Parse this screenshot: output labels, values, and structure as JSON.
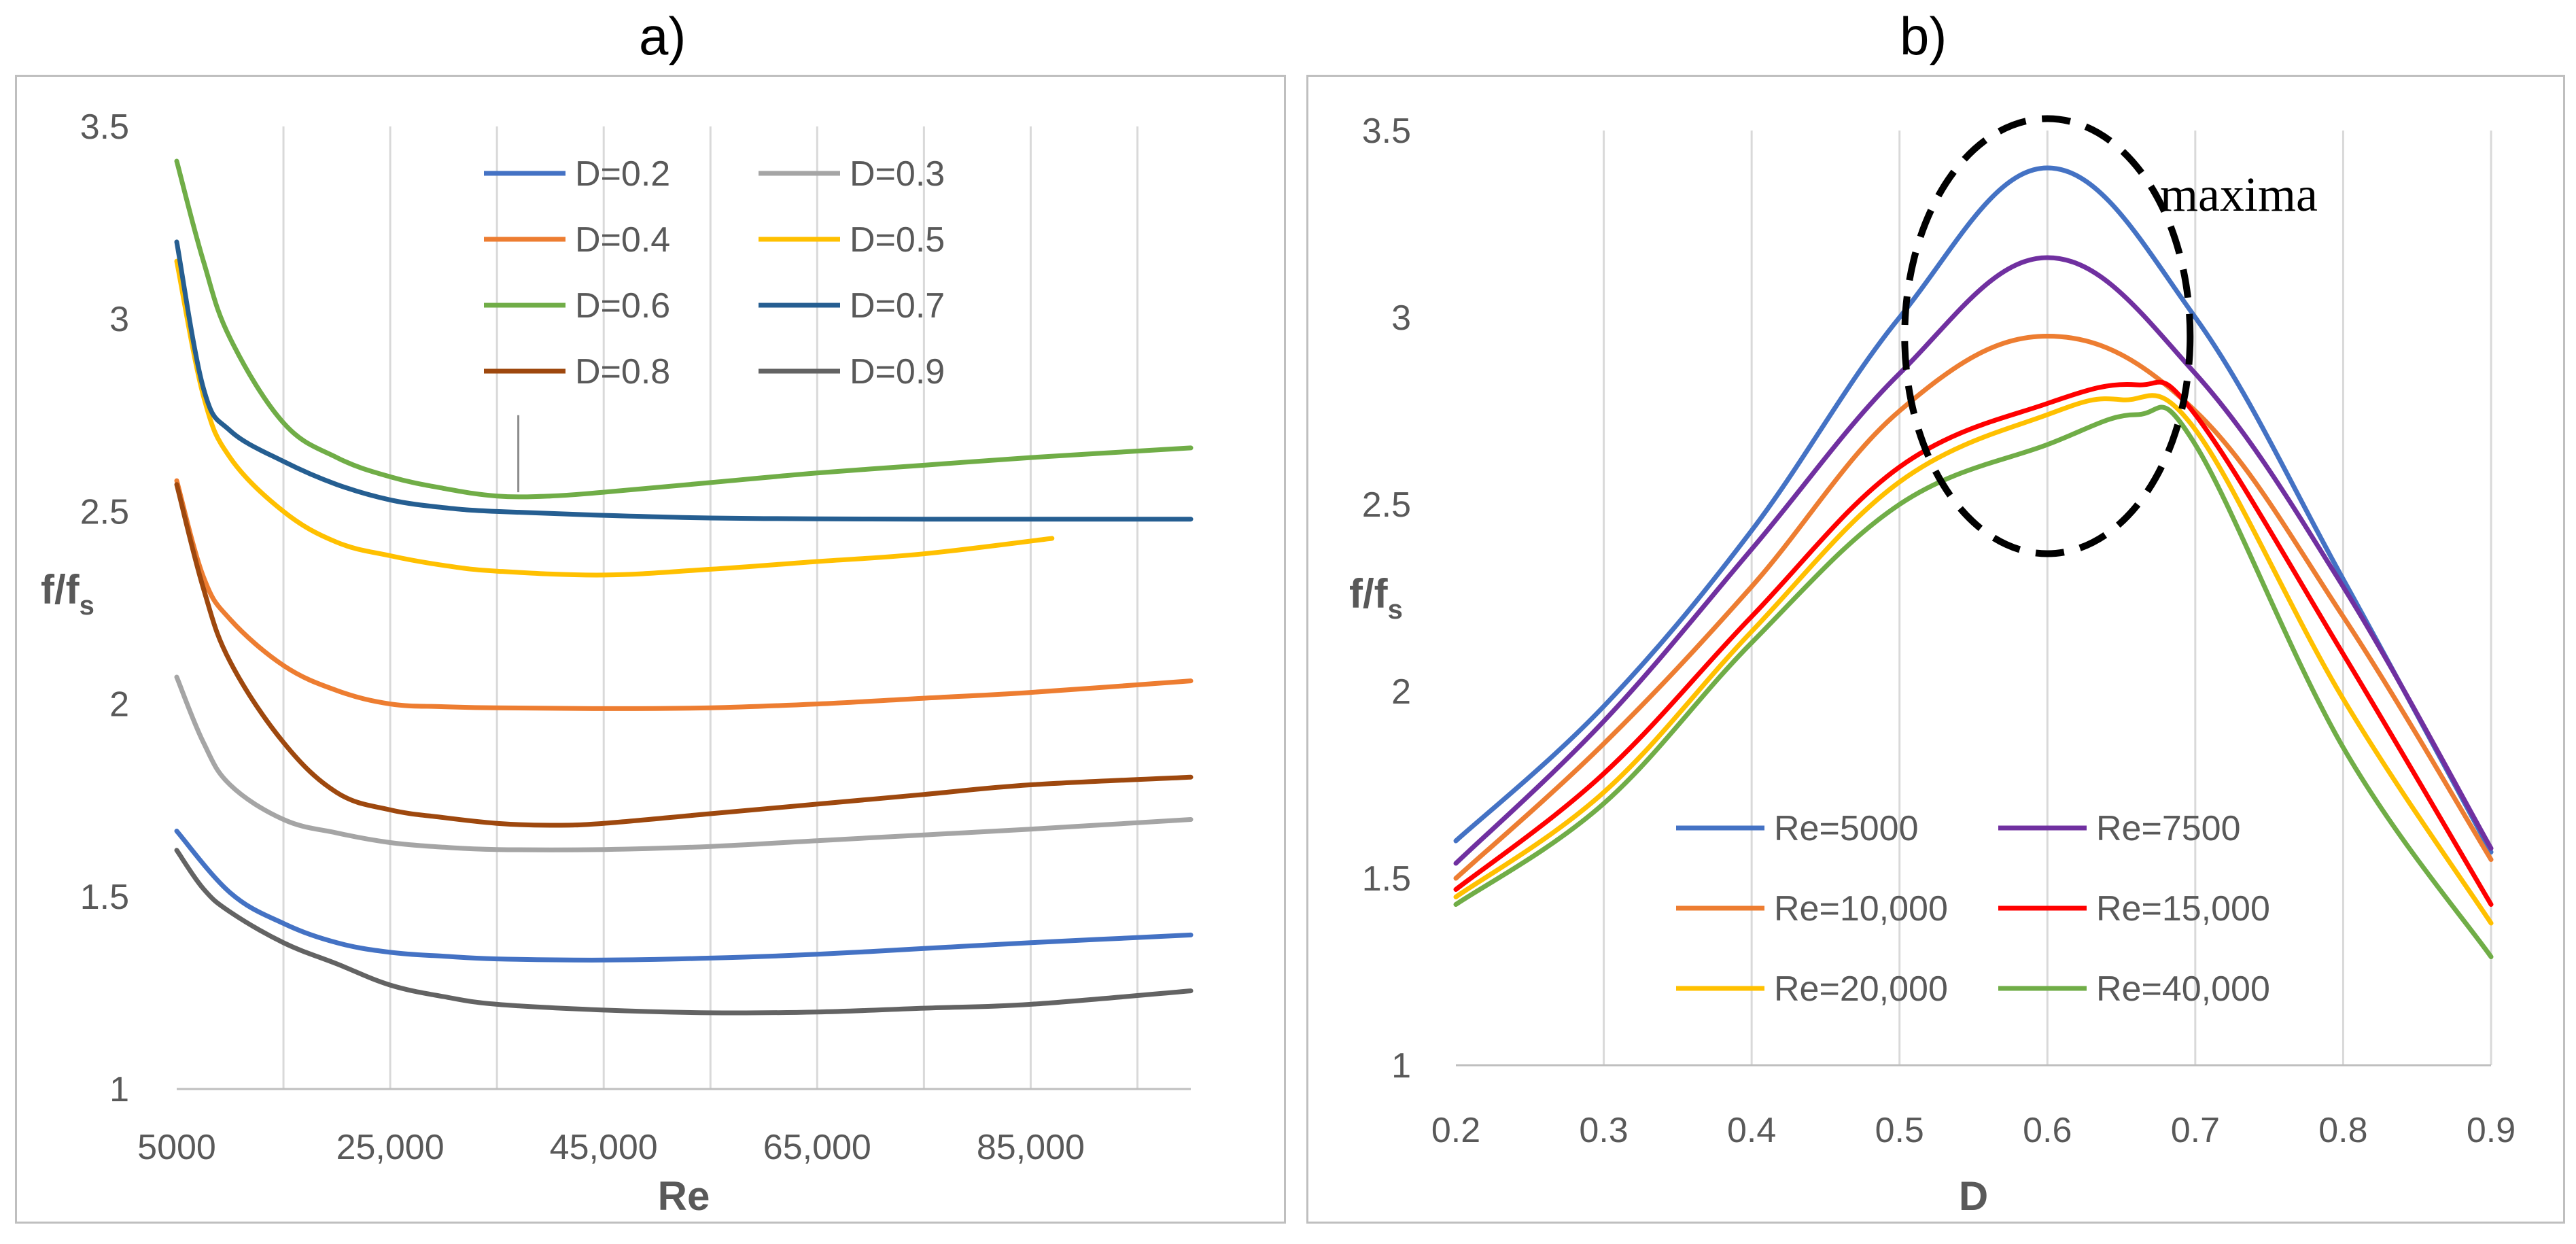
{
  "chart_data": [
    {
      "panel_label": "a)",
      "type": "line",
      "title": "",
      "xlabel": "Re",
      "ylabel_main": "f/f",
      "ylabel_sub": "s",
      "xlim": [
        5000,
        100000
      ],
      "ylim": [
        1,
        3.5
      ],
      "x_ticks": [
        5000,
        25000,
        45000,
        65000,
        85000
      ],
      "x_tick_labels": [
        "5000",
        "25,000",
        "45,000",
        "65,000",
        "85,000"
      ],
      "y_ticks": [
        1,
        1.5,
        2,
        2.5,
        3,
        3.5
      ],
      "y_tick_labels": [
        "1",
        "1.5",
        "2",
        "2.5",
        "3",
        "3.5"
      ],
      "grid": "vertical",
      "legend_position": "top-right",
      "series": [
        {
          "name": "D=0.2",
          "color": "#4472C4",
          "x": [
            5000,
            10000,
            15000,
            20000,
            25000,
            30000,
            35000,
            45000,
            55000,
            65000,
            75000,
            85000,
            100000
          ],
          "y": [
            1.67,
            1.51,
            1.43,
            1.38,
            1.355,
            1.345,
            1.338,
            1.335,
            1.34,
            1.35,
            1.365,
            1.38,
            1.4
          ]
        },
        {
          "name": "D=0.3",
          "color": "#A5A5A5",
          "x": [
            5000,
            7500,
            10000,
            15000,
            20000,
            25000,
            30000,
            35000,
            45000,
            55000,
            65000,
            75000,
            85000,
            100000
          ],
          "y": [
            2.07,
            1.9,
            1.79,
            1.7,
            1.665,
            1.64,
            1.628,
            1.622,
            1.622,
            1.63,
            1.645,
            1.66,
            1.675,
            1.7
          ]
        },
        {
          "name": "D=0.4",
          "color": "#ED7D31",
          "x": [
            5000,
            7500,
            10000,
            15000,
            20000,
            25000,
            30000,
            35000,
            45000,
            55000,
            65000,
            75000,
            85000,
            100000
          ],
          "y": [
            2.58,
            2.33,
            2.22,
            2.1,
            2.035,
            2.0,
            1.993,
            1.99,
            1.988,
            1.99,
            2.0,
            2.015,
            2.03,
            2.06
          ]
        },
        {
          "name": "D=0.5",
          "color": "#FFC000",
          "x": [
            5000,
            7500,
            10000,
            15000,
            20000,
            25000,
            30000,
            35000,
            45000,
            55000,
            65000,
            75000,
            87000
          ],
          "y": [
            3.15,
            2.8,
            2.64,
            2.5,
            2.42,
            2.385,
            2.36,
            2.345,
            2.335,
            2.35,
            2.37,
            2.39,
            2.43
          ]
        },
        {
          "name": "D=0.6",
          "color": "#70AD47",
          "x": [
            5000,
            7500,
            10000,
            15000,
            20000,
            25000,
            30000,
            35000,
            40000,
            45000,
            55000,
            65000,
            75000,
            85000,
            100000
          ],
          "y": [
            3.41,
            3.15,
            2.95,
            2.73,
            2.64,
            2.59,
            2.56,
            2.54,
            2.54,
            2.55,
            2.575,
            2.6,
            2.62,
            2.64,
            2.665
          ]
        },
        {
          "name": "D=0.7",
          "color": "#255E91",
          "x": [
            5000,
            7500,
            10000,
            15000,
            20000,
            25000,
            30000,
            35000,
            45000,
            55000,
            65000,
            75000,
            85000,
            100000
          ],
          "y": [
            3.2,
            2.82,
            2.71,
            2.63,
            2.57,
            2.53,
            2.51,
            2.5,
            2.49,
            2.483,
            2.481,
            2.48,
            2.48,
            2.48
          ]
        },
        {
          "name": "D=0.8",
          "color": "#9E480E",
          "x": [
            5000,
            7500,
            10000,
            15000,
            20000,
            25000,
            30000,
            35000,
            40000,
            45000,
            55000,
            65000,
            75000,
            85000,
            100000
          ],
          "y": [
            2.57,
            2.3,
            2.11,
            1.9,
            1.77,
            1.725,
            1.705,
            1.69,
            1.685,
            1.69,
            1.715,
            1.74,
            1.765,
            1.79,
            1.81
          ]
        },
        {
          "name": "D=0.9",
          "color": "#636363",
          "x": [
            5000,
            7500,
            10000,
            15000,
            20000,
            25000,
            30000,
            35000,
            45000,
            55000,
            65000,
            75000,
            85000,
            100000
          ],
          "y": [
            1.62,
            1.52,
            1.46,
            1.38,
            1.325,
            1.27,
            1.24,
            1.22,
            1.205,
            1.198,
            1.2,
            1.21,
            1.22,
            1.255
          ]
        }
      ]
    },
    {
      "panel_label": "b)",
      "type": "line",
      "title": "",
      "xlabel": "D",
      "ylabel_main": "f/f",
      "ylabel_sub": "s",
      "xlim": [
        0.2,
        0.9
      ],
      "ylim": [
        1,
        3.5
      ],
      "x_ticks": [
        0.2,
        0.3,
        0.4,
        0.5,
        0.6,
        0.7,
        0.8,
        0.9
      ],
      "x_tick_labels": [
        "0.2",
        "0.3",
        "0.4",
        "0.5",
        "0.6",
        "0.7",
        "0.8",
        "0.9"
      ],
      "y_ticks": [
        1,
        1.5,
        2,
        2.5,
        3,
        3.5
      ],
      "y_tick_labels": [
        "1",
        "1.5",
        "2",
        "2.5",
        "3",
        "3.5"
      ],
      "grid": "vertical",
      "legend_position": "bottom-center",
      "annotation": {
        "text": "maxima",
        "ellipse_center": [
          0.6,
          2.95
        ]
      },
      "series": [
        {
          "name": "Re=5000",
          "color": "#4472C4",
          "x": [
            0.2,
            0.3,
            0.4,
            0.5,
            0.6,
            0.7,
            0.8,
            0.9
          ],
          "y": [
            1.6,
            1.96,
            2.43,
            3.0,
            3.4,
            3.0,
            2.3,
            1.57
          ]
        },
        {
          "name": "Re=7500",
          "color": "#7030A0",
          "x": [
            0.2,
            0.3,
            0.4,
            0.5,
            0.6,
            0.7,
            0.8,
            0.9
          ],
          "y": [
            1.54,
            1.92,
            2.38,
            2.85,
            3.16,
            2.85,
            2.28,
            1.58
          ]
        },
        {
          "name": "Re=10,000",
          "color": "#ED7D31",
          "x": [
            0.2,
            0.3,
            0.4,
            0.5,
            0.6,
            0.7,
            0.8,
            0.9
          ],
          "y": [
            1.5,
            1.86,
            2.28,
            2.75,
            2.95,
            2.75,
            2.2,
            1.55
          ]
        },
        {
          "name": "Re=15,000",
          "color": "#FF0000",
          "x": [
            0.2,
            0.3,
            0.4,
            0.5,
            0.6,
            0.66,
            0.7,
            0.8,
            0.9
          ],
          "y": [
            1.47,
            1.78,
            2.2,
            2.6,
            2.77,
            2.82,
            2.74,
            2.1,
            1.43
          ]
        },
        {
          "name": "Re=20,000",
          "color": "#FFC000",
          "x": [
            0.2,
            0.3,
            0.4,
            0.5,
            0.6,
            0.65,
            0.7,
            0.8,
            0.9
          ],
          "y": [
            1.45,
            1.73,
            2.16,
            2.56,
            2.74,
            2.78,
            2.7,
            1.98,
            1.38
          ]
        },
        {
          "name": "Re=40,000",
          "color": "#70AD47",
          "x": [
            0.2,
            0.3,
            0.4,
            0.5,
            0.6,
            0.66,
            0.7,
            0.8,
            0.9
          ],
          "y": [
            1.43,
            1.7,
            2.13,
            2.5,
            2.66,
            2.74,
            2.66,
            1.85,
            1.29
          ]
        }
      ]
    }
  ]
}
